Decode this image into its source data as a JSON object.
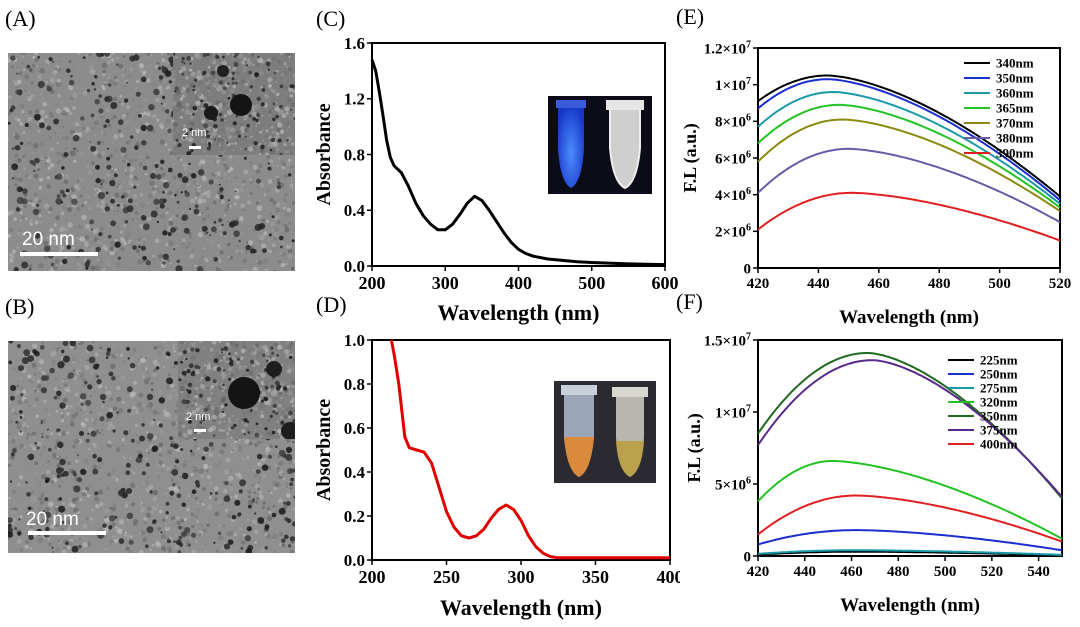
{
  "panels": {
    "A": {
      "label": "(A)",
      "scale_main": "20 nm",
      "scale_inset": "2 nm"
    },
    "B": {
      "label": "(B)",
      "scale_main": "20 nm",
      "scale_inset": "2 nm"
    },
    "C": {
      "label": "(C)"
    },
    "D": {
      "label": "(D)"
    },
    "E": {
      "label": "(E)"
    },
    "F": {
      "label": "(F)"
    }
  },
  "colors": {
    "curve_C": "#000000",
    "curve_D": "#e00000",
    "vial_blue": "#2b6cff",
    "vial_orange": "#d98a3a"
  },
  "chart_data": [
    {
      "id": "C",
      "type": "line",
      "xlabel": "Wavelength (nm)",
      "ylabel": "Absorbance",
      "xlim": [
        200,
        600
      ],
      "ylim": [
        0,
        1.6
      ],
      "xticks": [
        "200",
        "300",
        "400",
        "500",
        "600"
      ],
      "yticks": [
        "0.0",
        "0.4",
        "0.8",
        "1.2",
        "1.6"
      ],
      "series": [
        {
          "name": "absorbance",
          "color": "#000000",
          "x": [
            200,
            205,
            210,
            215,
            220,
            225,
            230,
            240,
            250,
            260,
            270,
            280,
            290,
            300,
            310,
            320,
            330,
            340,
            350,
            360,
            370,
            380,
            390,
            400,
            410,
            420,
            440,
            460,
            480,
            500,
            550,
            600
          ],
          "y": [
            1.48,
            1.4,
            1.25,
            1.08,
            0.9,
            0.78,
            0.72,
            0.67,
            0.57,
            0.45,
            0.36,
            0.3,
            0.26,
            0.26,
            0.3,
            0.37,
            0.45,
            0.5,
            0.47,
            0.4,
            0.32,
            0.24,
            0.17,
            0.12,
            0.09,
            0.07,
            0.05,
            0.04,
            0.03,
            0.025,
            0.015,
            0.01
          ]
        }
      ]
    },
    {
      "id": "D",
      "type": "line",
      "xlabel": "Wavelength (nm)",
      "ylabel": "Absorbance",
      "xlim": [
        200,
        400
      ],
      "ylim": [
        0,
        1.0
      ],
      "xticks": [
        "200",
        "250",
        "300",
        "350",
        "400"
      ],
      "yticks": [
        "0.0",
        "0.2",
        "0.4",
        "0.6",
        "0.8",
        "1.0"
      ],
      "series": [
        {
          "name": "absorbance",
          "color": "#e00000",
          "x": [
            213,
            215,
            218,
            220,
            222,
            225,
            230,
            235,
            240,
            245,
            250,
            255,
            260,
            265,
            270,
            275,
            280,
            285,
            290,
            295,
            300,
            305,
            310,
            315,
            320,
            325,
            330,
            350,
            400
          ],
          "y": [
            1.0,
            0.93,
            0.8,
            0.68,
            0.56,
            0.51,
            0.5,
            0.49,
            0.44,
            0.33,
            0.22,
            0.15,
            0.11,
            0.1,
            0.11,
            0.14,
            0.19,
            0.23,
            0.25,
            0.23,
            0.18,
            0.11,
            0.06,
            0.03,
            0.015,
            0.01,
            0.01,
            0.01,
            0.01
          ]
        }
      ]
    },
    {
      "id": "E",
      "type": "line",
      "xlabel": "Wavelength (nm)",
      "ylabel": "F.L (a.u.)",
      "xlim": [
        420,
        520
      ],
      "ylim": [
        0,
        12000000
      ],
      "xticks": [
        "420",
        "440",
        "460",
        "480",
        "500",
        "520"
      ],
      "ytick_values": [
        0,
        2000000,
        4000000,
        6000000,
        8000000,
        10000000,
        12000000
      ],
      "yticks": [
        {
          "base": "0",
          "exp": ""
        },
        {
          "base": "2×10",
          "exp": "6"
        },
        {
          "base": "4×10",
          "exp": "6"
        },
        {
          "base": "6×10",
          "exp": "6"
        },
        {
          "base": "8×10",
          "exp": "6"
        },
        {
          "base": "1×10",
          "exp": "7"
        },
        {
          "base": "1.2×10",
          "exp": "7"
        }
      ],
      "series": [
        {
          "name": "340nm",
          "color": "#000000",
          "peak_x": 443,
          "peak_y": 10500000,
          "start_y": 9100000,
          "end_y": 3900000
        },
        {
          "name": "350nm",
          "color": "#1b2fcf",
          "peak_x": 443,
          "peak_y": 10300000,
          "start_y": 8700000,
          "end_y": 3700000
        },
        {
          "name": "360nm",
          "color": "#1a9aa8",
          "peak_x": 445,
          "peak_y": 9600000,
          "start_y": 7700000,
          "end_y": 3500000
        },
        {
          "name": "365nm",
          "color": "#22c322",
          "peak_x": 447,
          "peak_y": 8900000,
          "start_y": 6800000,
          "end_y": 3300000
        },
        {
          "name": "370nm",
          "color": "#8a8a10",
          "peak_x": 448,
          "peak_y": 8100000,
          "start_y": 5800000,
          "end_y": 3100000
        },
        {
          "name": "380nm",
          "color": "#6a5aa8",
          "peak_x": 450,
          "peak_y": 6500000,
          "start_y": 4100000,
          "end_y": 2500000
        },
        {
          "name": "390nm",
          "color": "#e02020",
          "peak_x": 451,
          "peak_y": 4100000,
          "start_y": 2100000,
          "end_y": 1500000
        }
      ]
    },
    {
      "id": "F",
      "type": "line",
      "xlabel": "Wavelength (nm)",
      "ylabel": "F.L (a.u.)",
      "xlim": [
        420,
        550
      ],
      "ylim": [
        0,
        15000000
      ],
      "xticks": [
        "420",
        "440",
        "460",
        "480",
        "500",
        "520",
        "540"
      ],
      "ytick_values": [
        0,
        5000000,
        10000000,
        15000000
      ],
      "yticks": [
        {
          "base": "0",
          "exp": ""
        },
        {
          "base": "5×10",
          "exp": "6"
        },
        {
          "base": "1×10",
          "exp": "7"
        },
        {
          "base": "1.5×10",
          "exp": "7"
        }
      ],
      "series": [
        {
          "name": "225nm",
          "color": "#000000",
          "peak_x": 462,
          "peak_y": 300000,
          "start_y": 100000,
          "end_y": 50000
        },
        {
          "name": "250nm",
          "color": "#1b2fcf",
          "peak_x": 462,
          "peak_y": 1800000,
          "start_y": 800000,
          "end_y": 400000
        },
        {
          "name": "275nm",
          "color": "#1a9aa8",
          "peak_x": 462,
          "peak_y": 400000,
          "start_y": 150000,
          "end_y": 80000
        },
        {
          "name": "320nm",
          "color": "#22c322",
          "peak_x": 452,
          "peak_y": 6600000,
          "start_y": 3800000,
          "end_y": 1200000
        },
        {
          "name": "350nm",
          "color": "#1f6a1f",
          "peak_x": 467,
          "peak_y": 14100000,
          "start_y": 8500000,
          "end_y": 4000000
        },
        {
          "name": "375nm",
          "color": "#5a2a8a",
          "peak_x": 469,
          "peak_y": 13600000,
          "start_y": 7700000,
          "end_y": 4100000
        },
        {
          "name": "400nm",
          "color": "#e02020",
          "peak_x": 462,
          "peak_y": 4200000,
          "start_y": 1500000,
          "end_y": 1000000
        }
      ]
    }
  ]
}
